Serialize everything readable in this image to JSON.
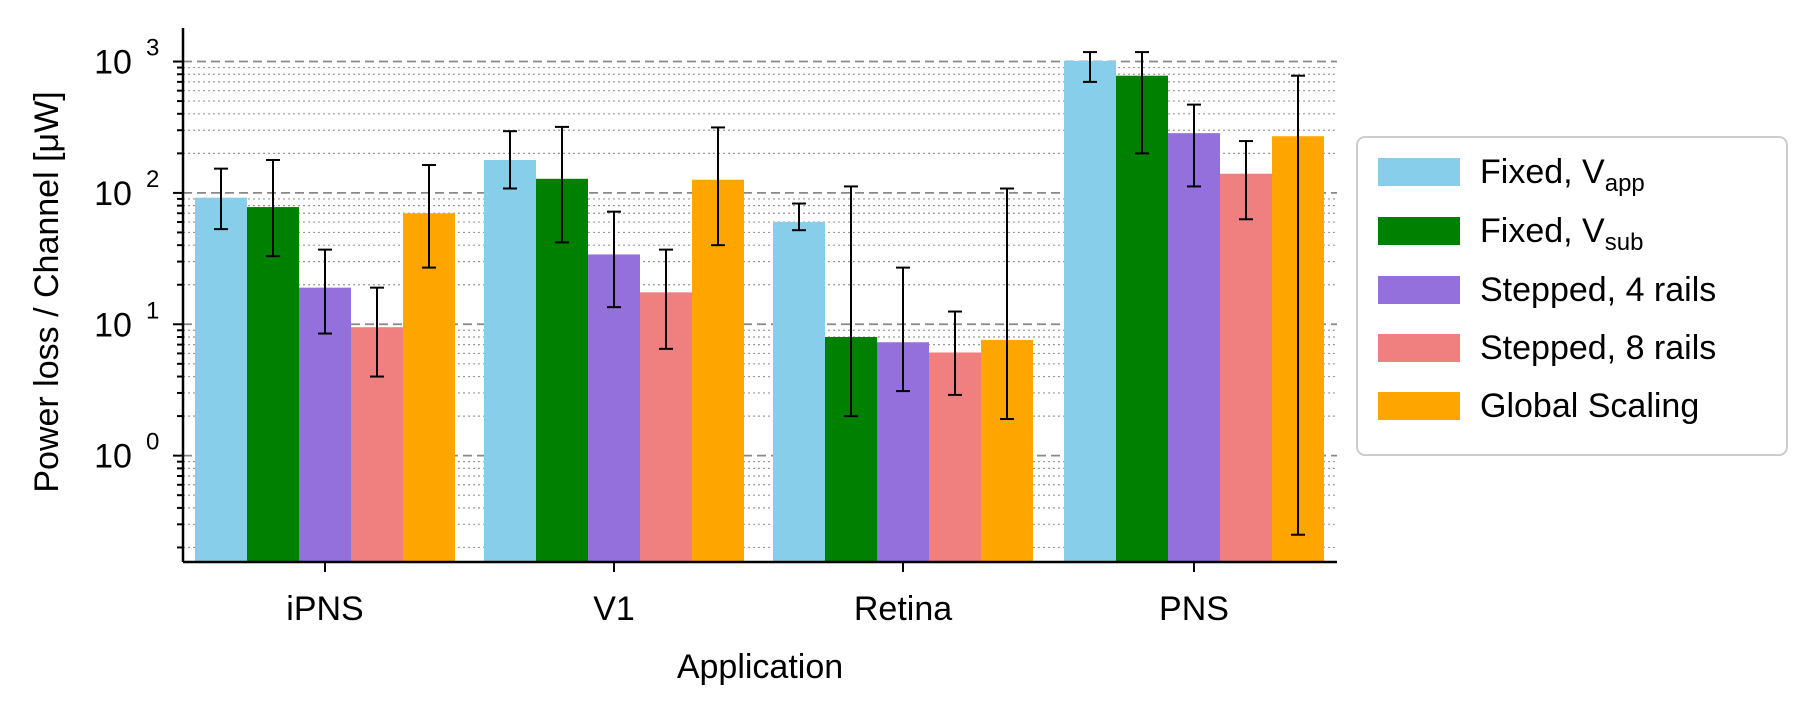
{
  "chart_data": {
    "type": "bar",
    "yscale": "log",
    "categories": [
      "iPNS",
      "V1",
      "Retina",
      "PNS"
    ],
    "series": [
      {
        "name": "Fixed, V",
        "subscript": "app",
        "color": "#87CEEB",
        "values": [
          92,
          178,
          60,
          1010
        ],
        "err_low": [
          53,
          108,
          52,
          700
        ],
        "err_high": [
          153,
          295,
          83,
          1180
        ]
      },
      {
        "name": "Fixed, V",
        "subscript": "sub",
        "color": "#008000",
        "values": [
          78,
          128,
          8,
          780
        ],
        "err_low": [
          33,
          42,
          2,
          200
        ],
        "err_high": [
          178,
          318,
          112,
          1180
        ]
      },
      {
        "name": "Stepped, 4 rails",
        "subscript": "",
        "color": "#9370DB",
        "values": [
          19,
          34,
          7.3,
          285
        ],
        "err_low": [
          8.5,
          13.5,
          3.1,
          112
        ],
        "err_high": [
          37,
          72,
          27,
          470
        ]
      },
      {
        "name": "Stepped, 8 rails",
        "subscript": "",
        "color": "#F08080",
        "values": [
          9.5,
          17.5,
          6.1,
          140
        ],
        "err_low": [
          4.0,
          6.5,
          2.9,
          63
        ],
        "err_high": [
          19,
          37,
          12.5,
          248
        ]
      },
      {
        "name": "Global Scaling",
        "subscript": "",
        "color": "#FFA500",
        "values": [
          70,
          126,
          7.6,
          270
        ],
        "err_low": [
          27,
          40,
          1.9,
          0.25
        ],
        "err_high": [
          163,
          315,
          108,
          780
        ]
      }
    ],
    "ylabel": "Power loss / Channel [μW]",
    "xlabel": "Application",
    "ylim": [
      0.155,
      1800
    ],
    "yticks": [
      {
        "base": "10",
        "exp": "0",
        "value": 1
      },
      {
        "base": "10",
        "exp": "1",
        "value": 10
      },
      {
        "base": "10",
        "exp": "2",
        "value": 100
      },
      {
        "base": "10",
        "exp": "3",
        "value": 1000
      }
    ],
    "grid": "major dashed, minor dotted",
    "legend_position": "outside right"
  }
}
